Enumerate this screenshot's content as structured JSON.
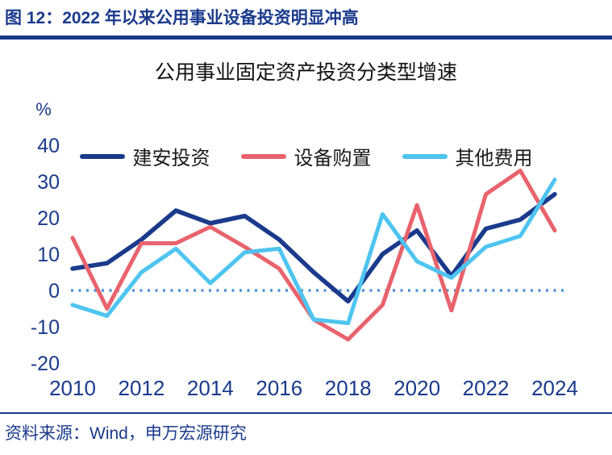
{
  "header": {
    "title": "图 12：2022 年以来公用事业设备投资明显冲高"
  },
  "chart": {
    "title": "公用事业固定资产投资分类型增速",
    "unit_label": "%"
  },
  "footer": {
    "source": "资料来源：Wind，申万宏源研究"
  },
  "colors": {
    "navy": "#1a3a8c",
    "series_blue": "#1a3a8c",
    "series_red": "#e8636c",
    "series_cyan": "#4ec4f0",
    "zero_line": "#4d93d6"
  },
  "chart_data": {
    "type": "line",
    "title": "公用事业固定资产投资分类型增速",
    "ylabel": "%",
    "xlabel": "",
    "x": [
      2010,
      2011,
      2012,
      2013,
      2014,
      2015,
      2016,
      2017,
      2018,
      2019,
      2020,
      2021,
      2022,
      2023,
      2024
    ],
    "xticks": [
      2010,
      2012,
      2014,
      2016,
      2018,
      2020,
      2022,
      2024
    ],
    "yticks": [
      40,
      30,
      20,
      10,
      0,
      -10,
      -20
    ],
    "ylim": [
      -20,
      40
    ],
    "grid": false,
    "zero_line": true,
    "legend_position": "top",
    "series": [
      {
        "name": "建安投资",
        "color": "#1a3a8c",
        "values": [
          6,
          7.5,
          14,
          22,
          18.5,
          20.5,
          14,
          5,
          -3,
          10,
          16.5,
          4,
          17,
          19.5,
          26.5
        ]
      },
      {
        "name": "设备购置",
        "color": "#e8636c",
        "values": [
          14.5,
          -5,
          13,
          13,
          17.5,
          12,
          6,
          -8,
          -13.5,
          -4,
          23.5,
          -5.5,
          26.5,
          33,
          16.5
        ]
      },
      {
        "name": "其他费用",
        "color": "#4ec4f0",
        "values": [
          -4,
          -7,
          5,
          11.5,
          2,
          10.5,
          11.5,
          -8,
          -9,
          21,
          8,
          3.5,
          12,
          15,
          30.5
        ]
      }
    ]
  }
}
